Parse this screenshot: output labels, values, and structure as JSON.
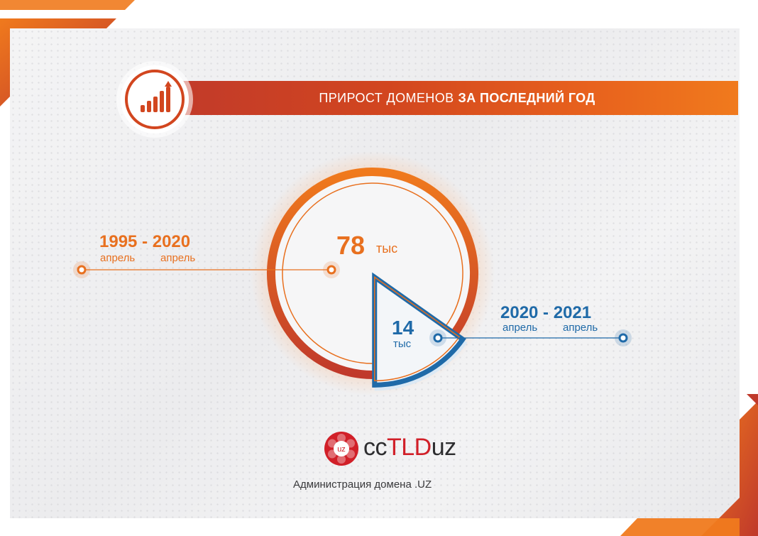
{
  "header": {
    "title_regular": "ПРИРОСТ ДОМЕНОВ",
    "title_bold": "ЗА ПОСЛЕДНИЙ ГОД",
    "icon": "bar-chart-growth-icon"
  },
  "chart_data": {
    "type": "pie",
    "categories": [
      "1995 - 2020",
      "2020 - 2021"
    ],
    "values": [
      78,
      14
    ],
    "slices": [
      {
        "period": "1995 - 2020",
        "months": "апрель  апрель",
        "from": "апрель",
        "to": "апрель",
        "value": "78",
        "unit": "тыс",
        "color": "#e8701f"
      },
      {
        "period": "2020 - 2021",
        "months": "апрель  апрель",
        "from": "апрель",
        "to": "апрель",
        "value": "14",
        "unit": "тыс",
        "color": "#1f6aa8"
      }
    ]
  },
  "footer": {
    "logo_badge": "uz",
    "logo_prefix": "cc",
    "logo_highlight": "TLD",
    "logo_suffix": "uz",
    "caption": "Администрация домена .UZ"
  },
  "colors": {
    "orange": "#e8701f",
    "red": "#c0392b",
    "blue": "#1f6aa8",
    "brand_red": "#d11f28"
  }
}
